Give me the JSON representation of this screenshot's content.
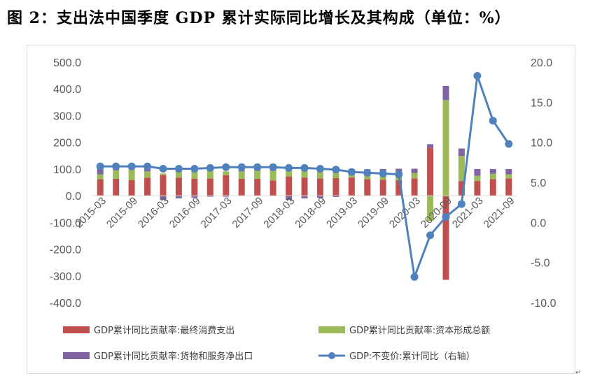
{
  "title": "图 2：支出法中国季度 GDP 累计实际同比增长及其构成（单位：%）",
  "chart_data": {
    "type": "bar",
    "stacked": true,
    "categories": [
      "2015-03",
      "2015-06",
      "2015-09",
      "2015-12",
      "2016-03",
      "2016-06",
      "2016-09",
      "2016-12",
      "2017-03",
      "2017-06",
      "2017-09",
      "2017-12",
      "2018-03",
      "2018-06",
      "2018-09",
      "2018-12",
      "2019-03",
      "2019-06",
      "2019-09",
      "2019-12",
      "2020-03",
      "2020-06",
      "2020-09",
      "2020-12",
      "2021-03",
      "2021-06",
      "2021-09"
    ],
    "x_tick_labels": [
      "2015-03",
      "2015-09",
      "2016-03",
      "2016-09",
      "2017-03",
      "2017-09",
      "2018-03",
      "2018-09",
      "2019-03",
      "2019-09",
      "2020-03",
      "2020-09",
      "2021-03",
      "2021-09"
    ],
    "left_axis": {
      "min": -400,
      "max": 500,
      "step": 100,
      "tick_labels": [
        "-400.0",
        "-300.0",
        "-200.0",
        "-100.0",
        "0.0",
        "100.0",
        "200.0",
        "300.0",
        "400.0",
        "500.0"
      ]
    },
    "right_axis": {
      "min": -10,
      "max": 20,
      "step": 5,
      "tick_labels": [
        "-10.0",
        "-5.0",
        "0.0",
        "5.0",
        "10.0",
        "15.0",
        "20.0"
      ]
    },
    "series": [
      {
        "name": "GDP累计同比贡献率:最终消费支出",
        "color": "#c0504d",
        "axis": "left",
        "values": [
          62,
          63,
          58,
          67,
          78,
          67,
          64,
          65,
          77,
          63,
          63,
          57,
          72,
          68,
          65,
          66,
          68,
          62,
          60,
          58,
          65,
          180,
          -315,
          55,
          55,
          62,
          65
        ]
      },
      {
        "name": "GDP累计同比贡献率:资本形成总额",
        "color": "#9bbb59",
        "axis": "left",
        "values": [
          18,
          32,
          40,
          24,
          5,
          30,
          35,
          32,
          14,
          28,
          33,
          37,
          22,
          28,
          30,
          28,
          20,
          23,
          22,
          27,
          20,
          -95,
          358,
          94,
          20,
          20,
          15
        ]
      },
      {
        "name": "GDP累计同比贡献率:货物和服务净出口",
        "color": "#8064a2",
        "axis": "left",
        "values": [
          21,
          6,
          2,
          10,
          -16,
          -10,
          -7,
          -4,
          -4,
          5,
          5,
          6,
          -16,
          -10,
          -8,
          -5,
          12,
          14,
          18,
          16,
          16,
          13,
          53,
          28,
          25,
          18,
          20
        ]
      },
      {
        "name": "GDP:不变价:累计同比（右轴）",
        "color": "#4f81bd",
        "axis": "right",
        "type": "line",
        "values": [
          7.0,
          7.0,
          7.0,
          7.0,
          6.7,
          6.7,
          6.7,
          6.8,
          6.9,
          6.9,
          6.9,
          6.9,
          6.8,
          6.8,
          6.7,
          6.6,
          6.3,
          6.2,
          6.1,
          6.0,
          -6.8,
          -1.6,
          0.7,
          2.3,
          18.3,
          12.7,
          9.8
        ]
      }
    ],
    "legend": "bottom",
    "grid": false
  },
  "colors": {
    "axis": "#d9d9d9",
    "tick_text": "#595959"
  },
  "footnote_mark": "↵"
}
